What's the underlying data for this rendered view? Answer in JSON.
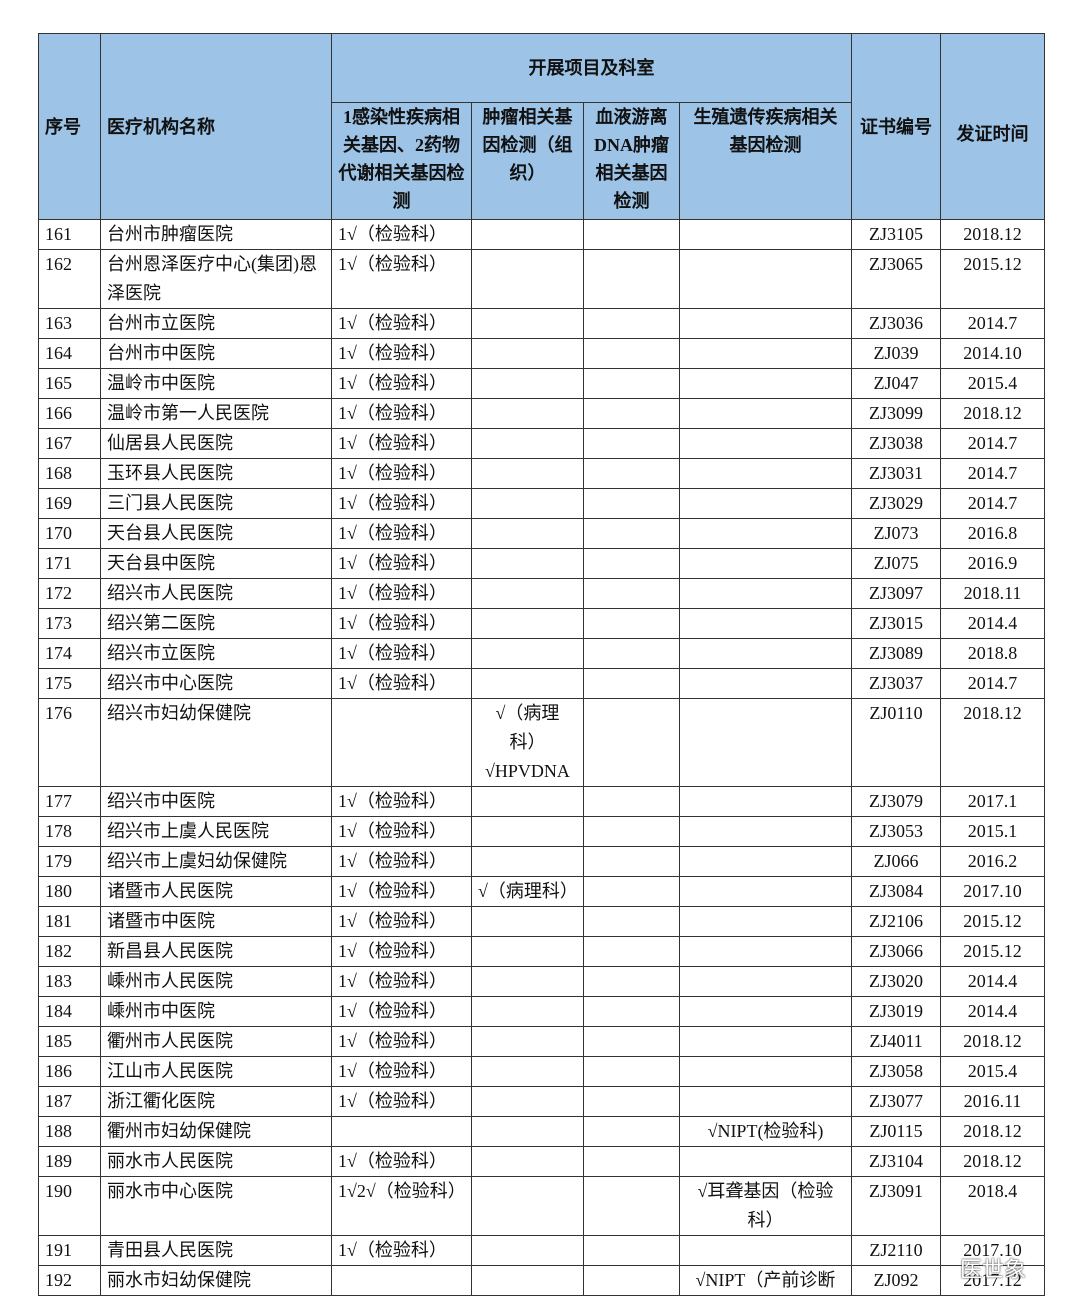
{
  "table": {
    "header": {
      "no": "序号",
      "name": "医疗机构名称",
      "group": "开展项目及科室",
      "c1": "1感染性疾病相关基因、2药物代谢相关基因检测",
      "c2": "肿瘤相关基因检测（组织）",
      "c3": "血液游离DNA肿瘤相关基因检测",
      "c4": "生殖遗传疾病相关基因检测",
      "cert": "证书编号",
      "date": "发证时间"
    },
    "rows": [
      {
        "no": "161",
        "name": "台州市肿瘤医院",
        "c1": "1√（检验科）",
        "cert": "ZJ3105",
        "date": "2018.12"
      },
      {
        "no": "162",
        "name": "台州恩泽医疗中心(集团)恩泽医院",
        "c1": "1√（检验科）",
        "cert": "ZJ3065",
        "date": "2015.12"
      },
      {
        "no": "163",
        "name": "台州市立医院",
        "c1": "1√（检验科）",
        "cert": "ZJ3036",
        "date": "2014.7"
      },
      {
        "no": "164",
        "name": "台州市中医院",
        "c1": "1√（检验科）",
        "cert": "ZJ039",
        "date": "2014.10"
      },
      {
        "no": "165",
        "name": "温岭市中医院",
        "c1": "1√（检验科）",
        "cert": "ZJ047",
        "date": "2015.4"
      },
      {
        "no": "166",
        "name": "温岭市第一人民医院",
        "c1": "1√（检验科）",
        "cert": "ZJ3099",
        "date": "2018.12"
      },
      {
        "no": "167",
        "name": "仙居县人民医院",
        "c1": "1√（检验科）",
        "cert": "ZJ3038",
        "date": "2014.7"
      },
      {
        "no": "168",
        "name": "玉环县人民医院",
        "c1": "1√（检验科）",
        "cert": "ZJ3031",
        "date": "2014.7"
      },
      {
        "no": "169",
        "name": "三门县人民医院",
        "c1": "1√（检验科）",
        "cert": "ZJ3029",
        "date": "2014.7"
      },
      {
        "no": "170",
        "name": "天台县人民医院",
        "c1": "1√（检验科）",
        "cert": "ZJ073",
        "date": "2016.8"
      },
      {
        "no": "171",
        "name": "天台县中医院",
        "c1": "1√（检验科）",
        "cert": "ZJ075",
        "date": "2016.9"
      },
      {
        "no": "172",
        "name": "绍兴市人民医院",
        "c1": "1√（检验科）",
        "cert": "ZJ3097",
        "date": "2018.11"
      },
      {
        "no": "173",
        "name": "绍兴第二医院",
        "c1": "1√（检验科）",
        "cert": "ZJ3015",
        "date": "2014.4"
      },
      {
        "no": "174",
        "name": "绍兴市立医院",
        "c1": "1√（检验科）",
        "cert": "ZJ3089",
        "date": "2018.8"
      },
      {
        "no": "175",
        "name": "绍兴市中心医院",
        "c1": "1√（检验科）",
        "cert": "ZJ3037",
        "date": "2014.7"
      },
      {
        "no": "176",
        "name": "绍兴市妇幼保健院",
        "c2": "√（病理科）\n√HPVDNA",
        "cert": "ZJ0110",
        "date": "2018.12"
      },
      {
        "no": "177",
        "name": "绍兴市中医院",
        "c1": "1√（检验科）",
        "cert": "ZJ3079",
        "date": "2017.1"
      },
      {
        "no": "178",
        "name": "绍兴市上虞人民医院",
        "c1": "1√（检验科）",
        "cert": "ZJ3053",
        "date": "2015.1"
      },
      {
        "no": "179",
        "name": "绍兴市上虞妇幼保健院",
        "c1": "1√（检验科）",
        "cert": "ZJ066",
        "date": "2016.2"
      },
      {
        "no": "180",
        "name": "诸暨市人民医院",
        "c1": "1√（检验科）",
        "c2": "√（病理科）",
        "cert": "ZJ3084",
        "date": "2017.10"
      },
      {
        "no": "181",
        "name": "诸暨市中医院",
        "c1": "1√（检验科）",
        "cert": "ZJ2106",
        "date": "2015.12"
      },
      {
        "no": "182",
        "name": "新昌县人民医院",
        "c1": "1√（检验科）",
        "cert": "ZJ3066",
        "date": "2015.12"
      },
      {
        "no": "183",
        "name": "嵊州市人民医院",
        "c1": "1√（检验科）",
        "cert": "ZJ3020",
        "date": "2014.4"
      },
      {
        "no": "184",
        "name": "嵊州市中医院",
        "c1": "1√（检验科）",
        "cert": "ZJ3019",
        "date": "2014.4"
      },
      {
        "no": "185",
        "name": "衢州市人民医院",
        "c1": "1√（检验科）",
        "cert": "ZJ4011",
        "date": "2018.12"
      },
      {
        "no": "186",
        "name": "江山市人民医院",
        "c1": "1√（检验科）",
        "cert": "ZJ3058",
        "date": "2015.4"
      },
      {
        "no": "187",
        "name": "浙江衢化医院",
        "c1": "1√（检验科）",
        "cert": "ZJ3077",
        "date": "2016.11"
      },
      {
        "no": "188",
        "name": "衢州市妇幼保健院",
        "c4": "√NIPT(检验科)",
        "cert": "ZJ0115",
        "date": "2018.12"
      },
      {
        "no": "189",
        "name": "丽水市人民医院",
        "c1": "1√（检验科）",
        "cert": "ZJ3104",
        "date": "2018.12"
      },
      {
        "no": "190",
        "name": "丽水市中心医院",
        "c1": "1√2√（检验科）",
        "c4": "√耳聋基因（检验科）",
        "cert": "ZJ3091",
        "date": "2018.4"
      },
      {
        "no": "191",
        "name": "青田县人民医院",
        "c1": "1√（检验科）",
        "cert": "ZJ2110",
        "date": "2017.10"
      },
      {
        "no": "192",
        "name": "丽水市妇幼保健院",
        "c4": "√NIPT（产前诊断",
        "cert": "ZJ092",
        "date": "2017.12"
      }
    ]
  },
  "watermark": "医世象"
}
